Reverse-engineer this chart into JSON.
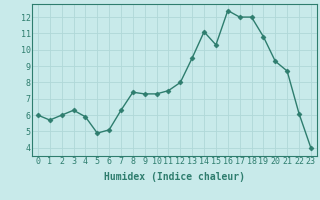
{
  "x": [
    0,
    1,
    2,
    3,
    4,
    5,
    6,
    7,
    8,
    9,
    10,
    11,
    12,
    13,
    14,
    15,
    16,
    17,
    18,
    19,
    20,
    21,
    22,
    23
  ],
  "y": [
    6.0,
    5.7,
    6.0,
    6.3,
    5.9,
    4.9,
    5.1,
    6.3,
    7.4,
    7.3,
    7.3,
    7.5,
    8.0,
    9.5,
    11.1,
    10.3,
    12.4,
    12.0,
    12.0,
    10.8,
    9.3,
    8.7,
    6.1,
    4.0
  ],
  "line_color": "#2e7d6e",
  "marker": "D",
  "markersize": 2.5,
  "linewidth": 1.0,
  "bg_color": "#c8eaea",
  "grid_color": "#b0d8d8",
  "xlabel": "Humidex (Indice chaleur)",
  "xlim": [
    -0.5,
    23.5
  ],
  "ylim": [
    3.5,
    12.8
  ],
  "yticks": [
    4,
    5,
    6,
    7,
    8,
    9,
    10,
    11,
    12
  ],
  "xticks": [
    0,
    1,
    2,
    3,
    4,
    5,
    6,
    7,
    8,
    9,
    10,
    11,
    12,
    13,
    14,
    15,
    16,
    17,
    18,
    19,
    20,
    21,
    22,
    23
  ],
  "xlabel_fontsize": 7,
  "tick_fontsize": 6
}
